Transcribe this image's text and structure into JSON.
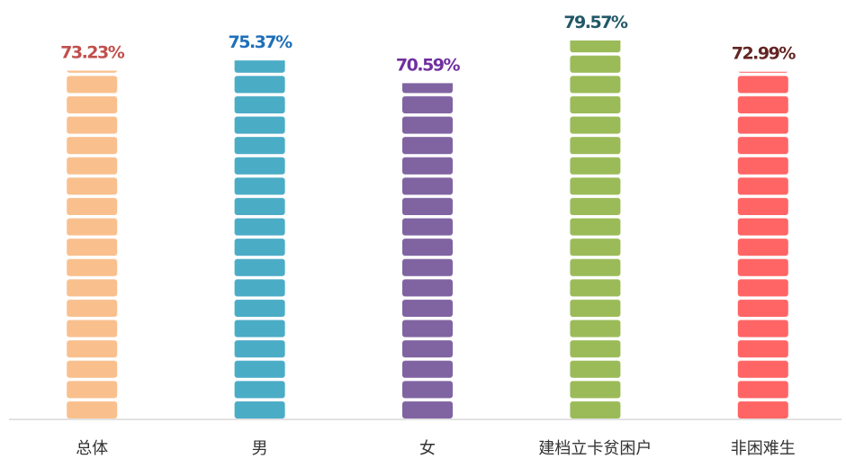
{
  "chart_data": {
    "type": "bar",
    "categories": [
      "总体",
      "男",
      "女",
      "建档立卡贫困户",
      "非困难生"
    ],
    "values": [
      73.23,
      75.37,
      70.59,
      79.57,
      72.99
    ],
    "value_labels": [
      "73.23%",
      "75.37%",
      "70.59%",
      "79.57%",
      "72.99%"
    ],
    "colors": [
      "#f9c08e",
      "#4bacc6",
      "#8064a2",
      "#9bbb59",
      "#ff6565"
    ],
    "label_colors": [
      "#c0504d",
      "#1f6fb8",
      "#7030a0",
      "#215867",
      "#632523"
    ]
  }
}
